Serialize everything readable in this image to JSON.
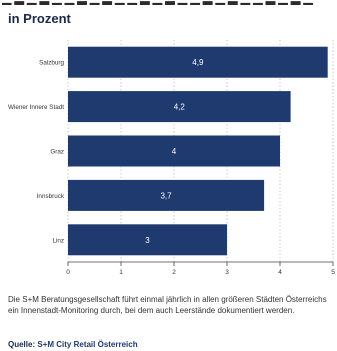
{
  "header": {
    "subtitle": "in Prozent"
  },
  "chart_data": {
    "type": "bar",
    "orientation": "horizontal",
    "categories": [
      "Salzburg",
      "Wiener Innere Stadt",
      "Graz",
      "Innsbruck",
      "Linz"
    ],
    "values": [
      4.9,
      4.2,
      4,
      3.7,
      3
    ],
    "value_labels": [
      "4,9",
      "4,2",
      "4",
      "3,7",
      "3"
    ],
    "xlim": [
      0,
      5
    ],
    "xticks": [
      0,
      1,
      2,
      3,
      4,
      5
    ],
    "grid": true,
    "colors": {
      "bar": "#1e3a6e",
      "grid": "#bfbfbf",
      "label": "#ffffff"
    }
  },
  "footer": {
    "note": "Die S+M Beratungsgesellschaft führt einmal jährlich in allen größeren Städten Österreichs ein Innenstadt-Monitoring durch, bei dem auch Leerstände dokumentiert werden.",
    "source_prefix": "Quelle:",
    "source_name": "S+M City Retail Österreich"
  }
}
